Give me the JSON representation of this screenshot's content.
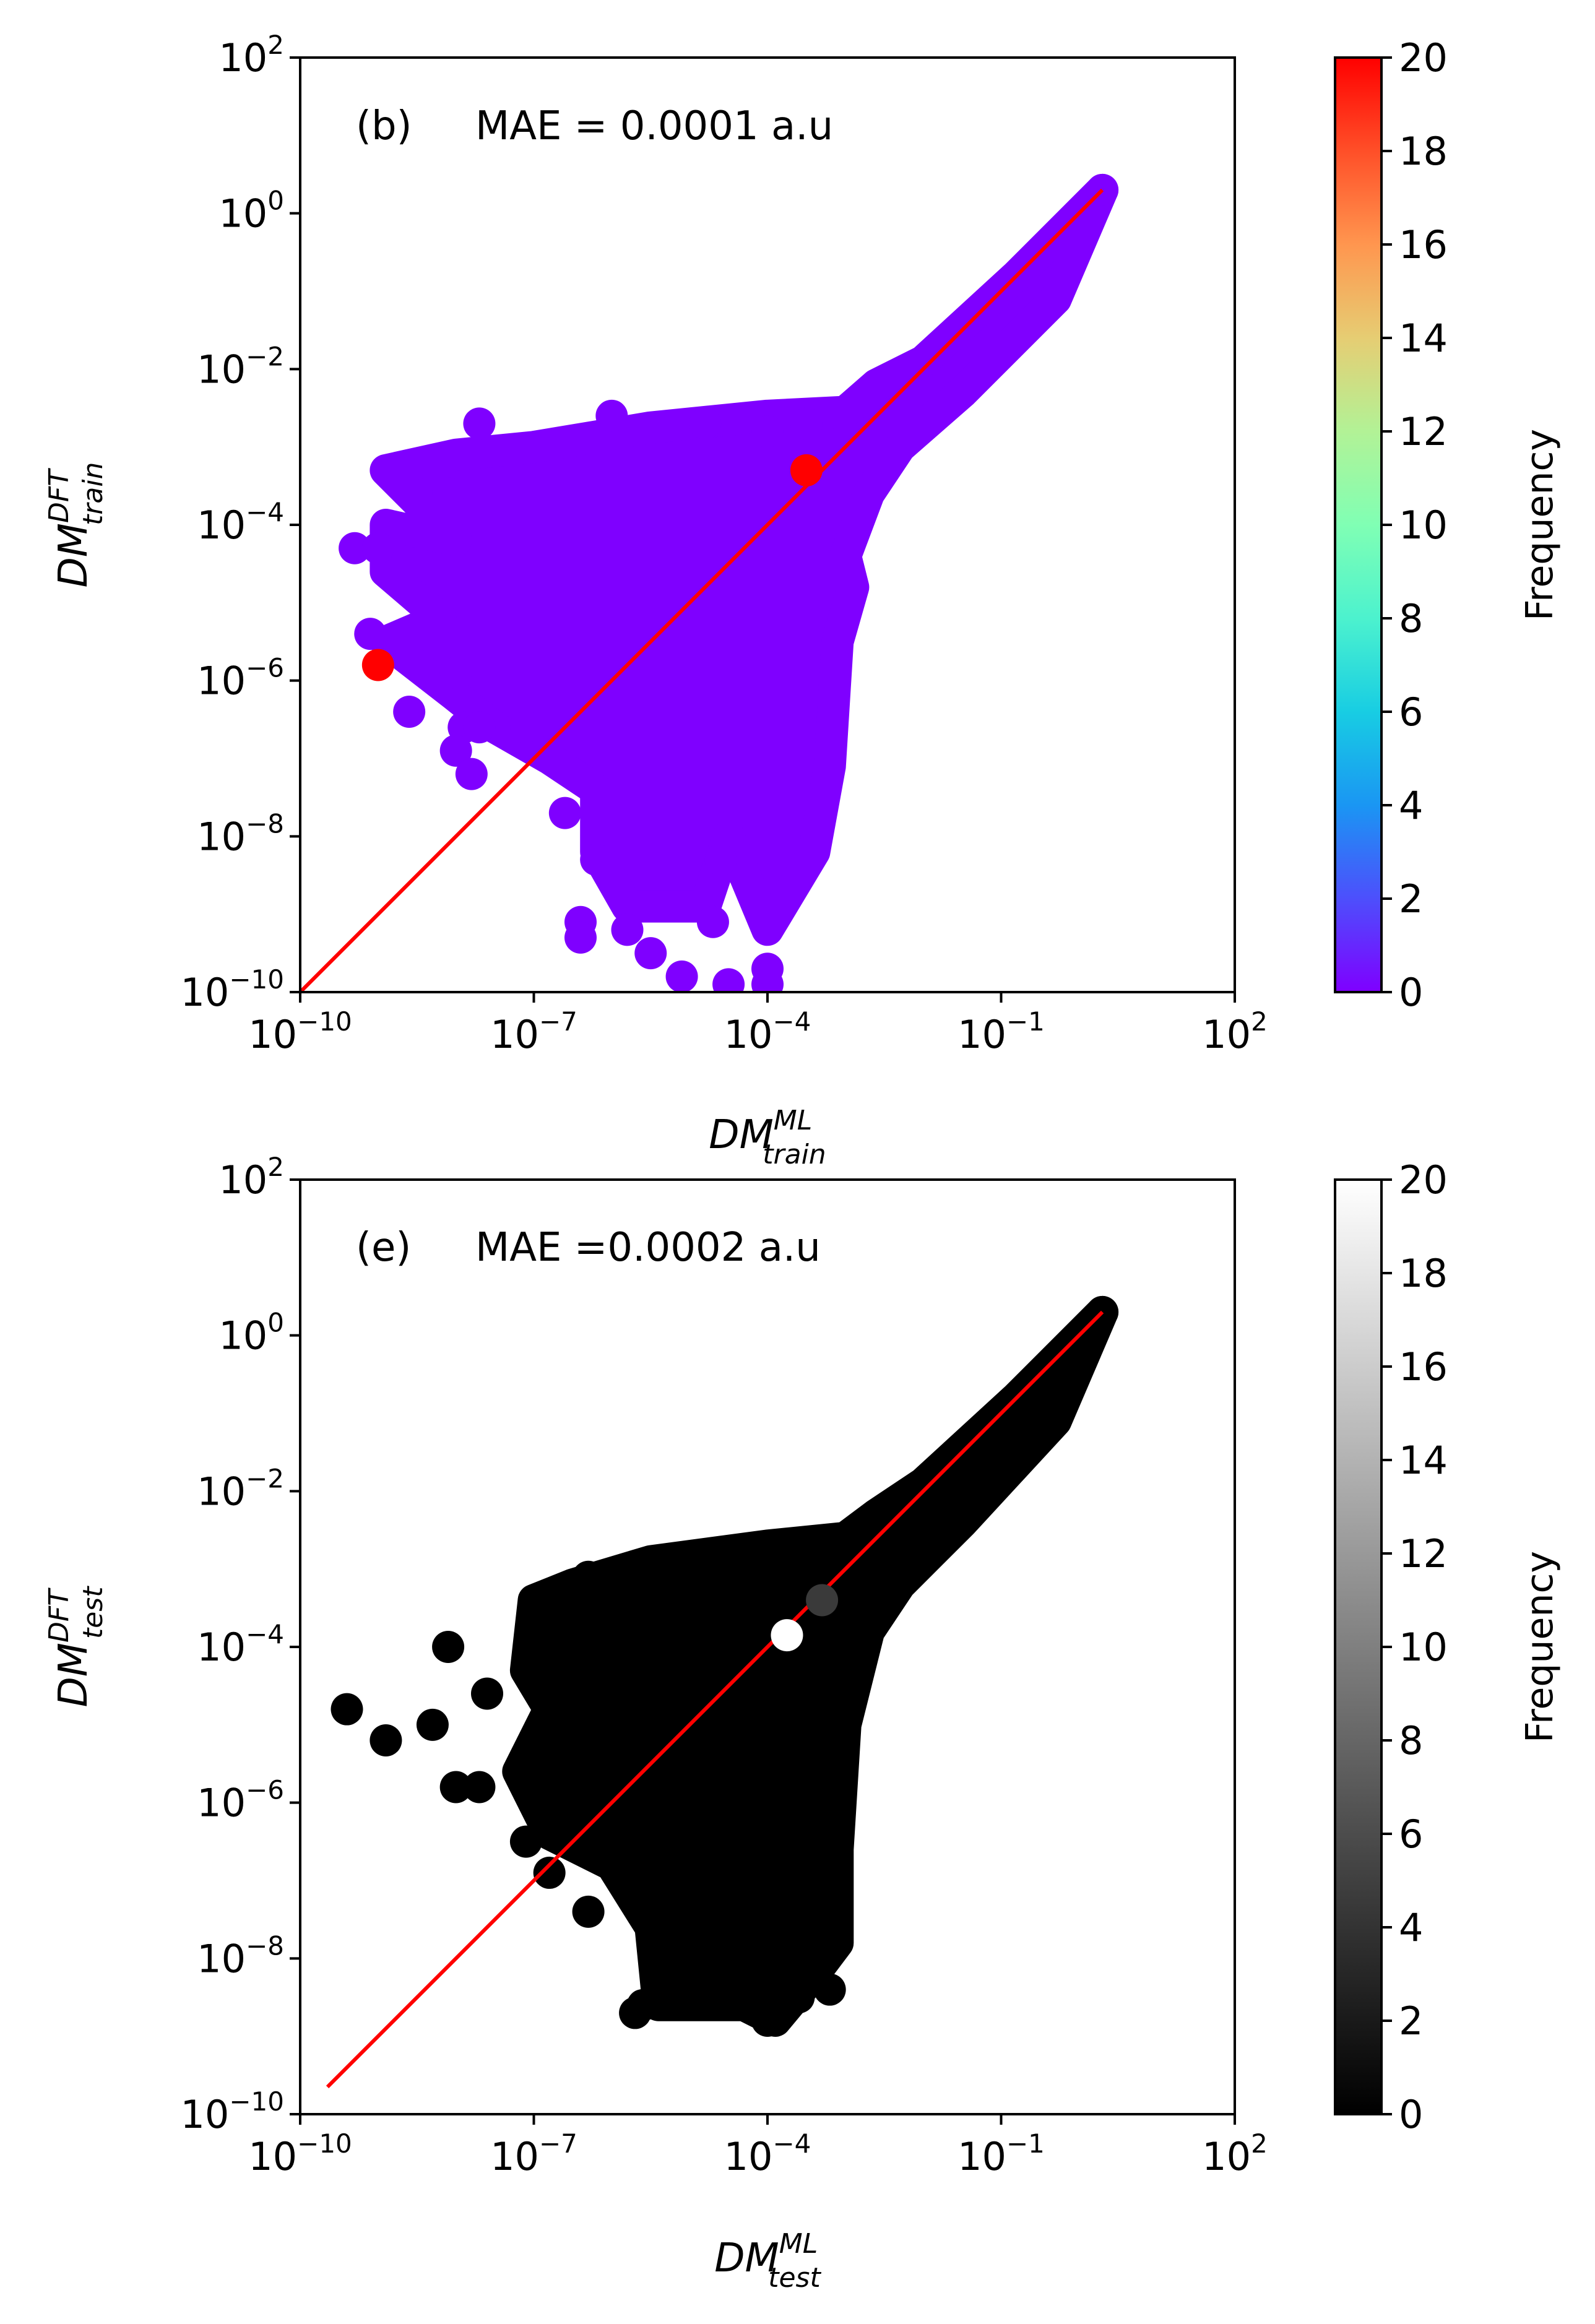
{
  "chart_data": [
    {
      "type": "scatter",
      "panel": "b",
      "annotation_label": "(b)",
      "annotation_mae": "MAE = 0.0001 a.u",
      "xlabel_base": "DM",
      "xlabel_sup": "ML",
      "xlabel_sub": "train",
      "ylabel_base": "DM",
      "ylabel_sup": "DFT",
      "ylabel_sub": "train",
      "x_scale": "log",
      "y_scale": "log",
      "xlim_exp": [
        -10,
        2
      ],
      "ylim_exp": [
        -10,
        2
      ],
      "x_ticks": [
        {
          "base": "10",
          "exp": "−10",
          "value": -10
        },
        {
          "base": "10",
          "exp": "−7",
          "value": -7
        },
        {
          "base": "10",
          "exp": "−4",
          "value": -4
        },
        {
          "base": "10",
          "exp": "−1",
          "value": -1
        },
        {
          "base": "10",
          "exp": "2",
          "value": 2
        }
      ],
      "y_ticks": [
        {
          "base": "10",
          "exp": "2",
          "value": 2
        },
        {
          "base": "10",
          "exp": "0",
          "value": 0
        },
        {
          "base": "10",
          "exp": "−2",
          "value": -2
        },
        {
          "base": "10",
          "exp": "−4",
          "value": -4
        },
        {
          "base": "10",
          "exp": "−6",
          "value": -6
        },
        {
          "base": "10",
          "exp": "−8",
          "value": -8
        },
        {
          "base": "10",
          "exp": "−10",
          "value": -10
        }
      ],
      "point_color": "#7f00ff",
      "highlight_color": "#ff0000",
      "fit_line": {
        "color": "#ff0000",
        "x_exp": [
          -10,
          0.3
        ],
        "y_exp": [
          -10,
          0.3
        ]
      },
      "cloud_envelope_exp": [
        [
          0.3,
          0.3
        ],
        [
          -0.8,
          -0.8
        ],
        [
          -2.0,
          -1.9
        ],
        [
          -2.6,
          -2.2
        ],
        [
          -3.0,
          -2.55
        ],
        [
          -4.0,
          -2.6
        ],
        [
          -5.5,
          -2.75
        ],
        [
          -7.0,
          -3.0
        ],
        [
          -8.0,
          -3.1
        ],
        [
          -8.9,
          -3.3
        ],
        [
          -8.0,
          -4.2
        ],
        [
          -8.9,
          -4.0
        ],
        [
          -8.9,
          -4.6
        ],
        [
          -8.2,
          -5.2
        ],
        [
          -8.9,
          -5.5
        ],
        [
          -8.0,
          -6.2
        ],
        [
          -7.5,
          -6.6
        ],
        [
          -6.8,
          -7.0
        ],
        [
          -6.2,
          -7.4
        ],
        [
          -6.2,
          -8.2
        ],
        [
          -5.8,
          -8.9
        ],
        [
          -4.8,
          -8.9
        ],
        [
          -4.5,
          -8.0
        ],
        [
          -4.0,
          -9.2
        ],
        [
          -3.4,
          -8.2
        ],
        [
          -3.2,
          -7.1
        ],
        [
          -3.1,
          -5.5
        ],
        [
          -2.9,
          -4.8
        ],
        [
          -3.0,
          -4.4
        ],
        [
          -2.7,
          -3.6
        ],
        [
          -2.3,
          -3.0
        ],
        [
          -1.5,
          -2.3
        ],
        [
          -0.3,
          -1.1
        ],
        [
          0.3,
          0.3
        ]
      ],
      "outliers_exp": [
        [
          -9.3,
          -4.3
        ],
        [
          -9.0,
          -4.3
        ],
        [
          -8.1,
          -3.6
        ],
        [
          -9.1,
          -5.4
        ],
        [
          -8.0,
          -5.9
        ],
        [
          -8.6,
          -6.4
        ],
        [
          -7.9,
          -6.6
        ],
        [
          -7.7,
          -6.6
        ],
        [
          -8.0,
          -6.9
        ],
        [
          -7.8,
          -7.2
        ],
        [
          -7.1,
          -6.6
        ],
        [
          -6.6,
          -7.7
        ],
        [
          -6.2,
          -8.3
        ],
        [
          -6.4,
          -9.1
        ],
        [
          -6.4,
          -9.3
        ],
        [
          -5.8,
          -9.2
        ],
        [
          -5.5,
          -9.5
        ],
        [
          -5.1,
          -9.8
        ],
        [
          -4.7,
          -9.1
        ],
        [
          -4.5,
          -9.9
        ],
        [
          -4.6,
          -8.3
        ],
        [
          -4.0,
          -9.9
        ],
        [
          -4.0,
          -9.7
        ],
        [
          -7.7,
          -2.7
        ],
        [
          -6.0,
          -2.6
        ],
        [
          -4.8,
          -2.7
        ],
        [
          -4.0,
          -2.8
        ],
        [
          -3.5,
          -2.7
        ],
        [
          0.3,
          0.3
        ]
      ],
      "highlight_points_exp": [
        [
          -9.0,
          -5.8
        ],
        [
          -3.5,
          -3.3
        ]
      ],
      "colorbar": {
        "colormap": "rainbow",
        "min": 0,
        "max": 20,
        "ticks": [
          "0",
          "2",
          "4",
          "6",
          "8",
          "10",
          "12",
          "14",
          "16",
          "18",
          "20"
        ],
        "label": "Frequency"
      }
    },
    {
      "type": "scatter",
      "panel": "e",
      "annotation_label": "(e)",
      "annotation_mae": "MAE =0.0002 a.u",
      "xlabel_base": "DM",
      "xlabel_sup": "ML",
      "xlabel_sub": "test",
      "ylabel_base": "DM",
      "ylabel_sup": "DFT",
      "ylabel_sub": "test",
      "x_scale": "log",
      "y_scale": "log",
      "xlim_exp": [
        -10,
        2
      ],
      "ylim_exp": [
        -10,
        2
      ],
      "x_ticks": [
        {
          "base": "10",
          "exp": "−10",
          "value": -10
        },
        {
          "base": "10",
          "exp": "−7",
          "value": -7
        },
        {
          "base": "10",
          "exp": "−4",
          "value": -4
        },
        {
          "base": "10",
          "exp": "−1",
          "value": -1
        },
        {
          "base": "10",
          "exp": "2",
          "value": 2
        }
      ],
      "y_ticks": [
        {
          "base": "10",
          "exp": "2",
          "value": 2
        },
        {
          "base": "10",
          "exp": "0",
          "value": 0
        },
        {
          "base": "10",
          "exp": "−2",
          "value": -2
        },
        {
          "base": "10",
          "exp": "−4",
          "value": -4
        },
        {
          "base": "10",
          "exp": "−6",
          "value": -6
        },
        {
          "base": "10",
          "exp": "−8",
          "value": -8
        },
        {
          "base": "10",
          "exp": "−10",
          "value": -10
        }
      ],
      "point_color": "#000000",
      "highlight_color": "#ffffff",
      "fit_line": {
        "color": "#ff0000",
        "x_exp": [
          -9.65,
          0.3
        ],
        "y_exp": [
          -9.65,
          0.3
        ]
      },
      "cloud_envelope_exp": [
        [
          0.3,
          0.3
        ],
        [
          -0.8,
          -0.8
        ],
        [
          -2.0,
          -1.9
        ],
        [
          -2.6,
          -2.3
        ],
        [
          -3.0,
          -2.6
        ],
        [
          -4.0,
          -2.7
        ],
        [
          -5.5,
          -2.9
        ],
        [
          -6.5,
          -3.2
        ],
        [
          -7.0,
          -3.4
        ],
        [
          -7.1,
          -4.3
        ],
        [
          -6.8,
          -4.8
        ],
        [
          -7.2,
          -5.6
        ],
        [
          -6.8,
          -6.4
        ],
        [
          -6.0,
          -6.8
        ],
        [
          -5.5,
          -7.6
        ],
        [
          -5.4,
          -8.6
        ],
        [
          -4.6,
          -8.6
        ],
        [
          -4.3,
          -8.6
        ],
        [
          -3.9,
          -8.8
        ],
        [
          -3.4,
          -8.2
        ],
        [
          -3.1,
          -7.8
        ],
        [
          -3.1,
          -6.6
        ],
        [
          -3.0,
          -5.0
        ],
        [
          -2.7,
          -3.8
        ],
        [
          -2.3,
          -3.2
        ],
        [
          -1.5,
          -2.4
        ],
        [
          -0.3,
          -1.1
        ],
        [
          0.3,
          0.3
        ]
      ],
      "outliers_exp": [
        [
          -9.4,
          -4.8
        ],
        [
          -8.9,
          -5.2
        ],
        [
          -8.3,
          -5.0
        ],
        [
          -8.0,
          -5.8
        ],
        [
          -7.7,
          -5.8
        ],
        [
          -8.1,
          -4.0
        ],
        [
          -7.6,
          -4.6
        ],
        [
          -7.1,
          -6.5
        ],
        [
          -6.8,
          -6.9
        ],
        [
          -6.3,
          -7.4
        ],
        [
          -5.2,
          -8.3
        ],
        [
          -5.6,
          -8.6
        ],
        [
          -5.7,
          -8.7
        ],
        [
          -4.0,
          -8.8
        ],
        [
          -3.6,
          -8.5
        ],
        [
          -3.2,
          -8.4
        ],
        [
          -6.3,
          -3.1
        ],
        [
          -5.5,
          -3.1
        ],
        [
          0.3,
          0.3
        ]
      ],
      "highlight_points_exp": [
        [
          -3.3,
          -3.4
        ],
        [
          -3.75,
          -3.85
        ]
      ],
      "highlight_colors": [
        "#3a3a3a",
        "#ffffff"
      ],
      "colorbar": {
        "colormap": "gray",
        "min": 0,
        "max": 20,
        "ticks": [
          "0",
          "2",
          "4",
          "6",
          "8",
          "10",
          "12",
          "14",
          "16",
          "18",
          "20"
        ],
        "label": "Frequency"
      }
    }
  ]
}
